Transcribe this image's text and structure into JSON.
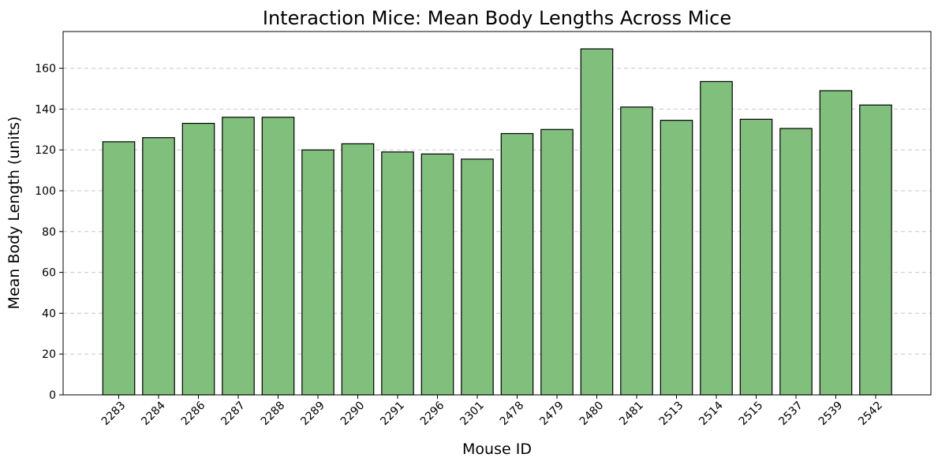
{
  "chart_data": {
    "type": "bar",
    "title": "Interaction Mice: Mean Body Lengths Across Mice",
    "xlabel": "Mouse ID",
    "ylabel": "Mean Body Length (units)",
    "categories": [
      "2283",
      "2284",
      "2286",
      "2287",
      "2288",
      "2289",
      "2290",
      "2291",
      "2296",
      "2301",
      "2478",
      "2479",
      "2480",
      "2481",
      "2513",
      "2514",
      "2515",
      "2537",
      "2539",
      "2542"
    ],
    "values": [
      124,
      126,
      133,
      136,
      136,
      120,
      123,
      119,
      118,
      115.5,
      128,
      130,
      169.5,
      141,
      134.5,
      153.5,
      135,
      130.5,
      149,
      142
    ],
    "ylim": [
      0,
      178
    ],
    "yticks": [
      0,
      20,
      40,
      60,
      80,
      100,
      120,
      140,
      160
    ],
    "grid": "y-dashed",
    "bar_color": "#81bf7d",
    "edge_color": "#000000"
  }
}
